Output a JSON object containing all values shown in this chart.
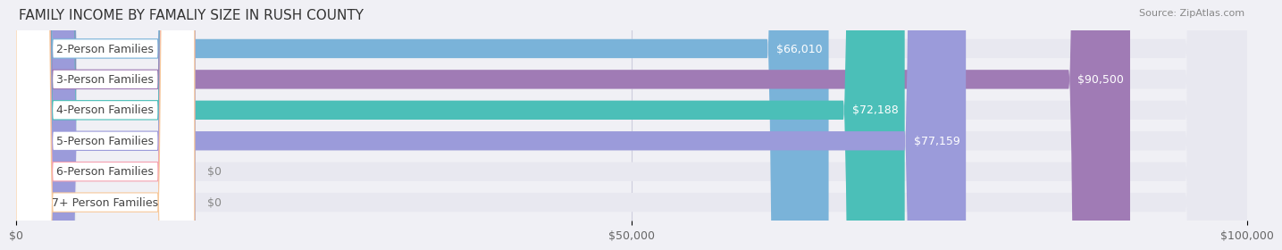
{
  "title": "FAMILY INCOME BY FAMALIY SIZE IN RUSH COUNTY",
  "source": "Source: ZipAtlas.com",
  "categories": [
    "2-Person Families",
    "3-Person Families",
    "4-Person Families",
    "5-Person Families",
    "6-Person Families",
    "7+ Person Families"
  ],
  "values": [
    66010,
    90500,
    72188,
    77159,
    0,
    0
  ],
  "bar_colors": [
    "#7ab3d9",
    "#a07bb5",
    "#4bbfb8",
    "#9b9bda",
    "#f4a0b0",
    "#f7c89a"
  ],
  "label_colors": [
    "#7ab3d9",
    "#a07bb5",
    "#4bbfb8",
    "#9b9bda",
    "#f4a0b0",
    "#f7c89a"
  ],
  "xlim": [
    0,
    100000
  ],
  "xticks": [
    0,
    50000,
    100000
  ],
  "xticklabels": [
    "$0",
    "$50,000",
    "$100,000"
  ],
  "background_color": "#f0f0f5",
  "bar_background_color": "#e8e8f0",
  "bar_height": 0.62,
  "title_fontsize": 11,
  "label_fontsize": 9,
  "value_fontsize": 9
}
